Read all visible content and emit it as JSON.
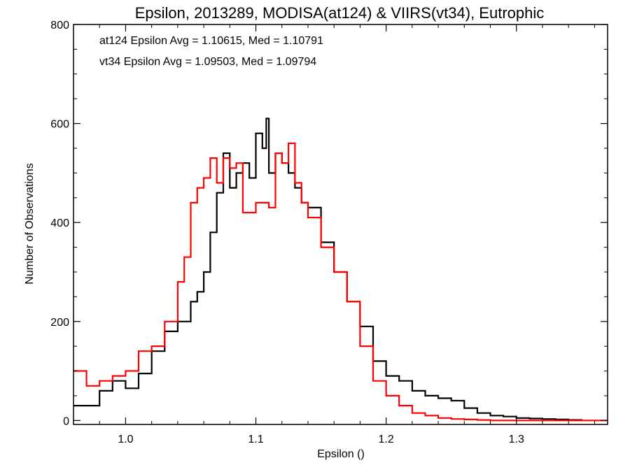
{
  "chart_data": {
    "type": "line",
    "title": "Epsilon, 2013289, MODISA(at124) & VIIRS(vt34), Eutrophic",
    "xlabel": "Epsilon ()",
    "ylabel": "Number of Observations",
    "xlim": [
      0.96,
      1.37
    ],
    "ylim": [
      -8,
      800
    ],
    "x_ticks": [
      1.0,
      1.1,
      1.2,
      1.3
    ],
    "x_tick_labels": [
      "1.0",
      "1.1",
      "1.2",
      "1.3"
    ],
    "y_ticks": [
      0,
      200,
      400,
      600,
      800
    ],
    "y_tick_labels": [
      "0",
      "200",
      "400",
      "600",
      "800"
    ],
    "grid": false,
    "annotations": [
      {
        "text": "at124 Epsilon Avg = 1.10615, Med = 1.10791",
        "color": "#000000"
      },
      {
        "text": "vt34 Epsilon Avg = 1.09503, Med = 1.09794",
        "color": "#ff0000"
      }
    ],
    "series": [
      {
        "color": "#000000",
        "x": [
          0.96,
          0.97,
          0.98,
          0.99,
          1.0,
          1.01,
          1.02,
          1.03,
          1.04,
          1.05,
          1.055,
          1.06,
          1.065,
          1.07,
          1.075,
          1.08,
          1.085,
          1.09,
          1.095,
          1.1,
          1.105,
          1.108,
          1.11,
          1.115,
          1.12,
          1.125,
          1.13,
          1.135,
          1.14,
          1.15,
          1.16,
          1.17,
          1.18,
          1.19,
          1.2,
          1.21,
          1.22,
          1.23,
          1.24,
          1.25,
          1.26,
          1.27,
          1.28,
          1.29,
          1.3,
          1.31,
          1.32,
          1.33,
          1.34,
          1.35
        ],
        "y": [
          30,
          30,
          60,
          80,
          65,
          95,
          140,
          180,
          200,
          240,
          260,
          300,
          380,
          460,
          540,
          470,
          500,
          520,
          490,
          580,
          550,
          610,
          500,
          540,
          520,
          500,
          470,
          440,
          430,
          360,
          300,
          240,
          190,
          120,
          90,
          80,
          60,
          50,
          45,
          40,
          25,
          15,
          10,
          8,
          5,
          4,
          3,
          2,
          1,
          0
        ]
      },
      {
        "color": "#ff0000",
        "x": [
          0.96,
          0.97,
          0.98,
          0.99,
          1.0,
          1.01,
          1.02,
          1.03,
          1.04,
          1.045,
          1.05,
          1.055,
          1.06,
          1.065,
          1.07,
          1.075,
          1.08,
          1.085,
          1.09,
          1.1,
          1.11,
          1.115,
          1.12,
          1.125,
          1.13,
          1.135,
          1.14,
          1.15,
          1.16,
          1.17,
          1.18,
          1.19,
          1.2,
          1.21,
          1.22,
          1.23,
          1.24,
          1.25,
          1.26,
          1.27,
          1.28,
          1.29,
          1.3,
          1.32,
          1.34,
          1.36,
          1.37
        ],
        "y": [
          100,
          70,
          80,
          90,
          100,
          140,
          150,
          200,
          280,
          330,
          440,
          470,
          490,
          530,
          480,
          530,
          510,
          520,
          420,
          440,
          430,
          540,
          520,
          560,
          480,
          440,
          410,
          350,
          300,
          240,
          150,
          80,
          50,
          30,
          15,
          10,
          5,
          3,
          2,
          1,
          0,
          0,
          0,
          0,
          0,
          0,
          0
        ]
      }
    ]
  }
}
